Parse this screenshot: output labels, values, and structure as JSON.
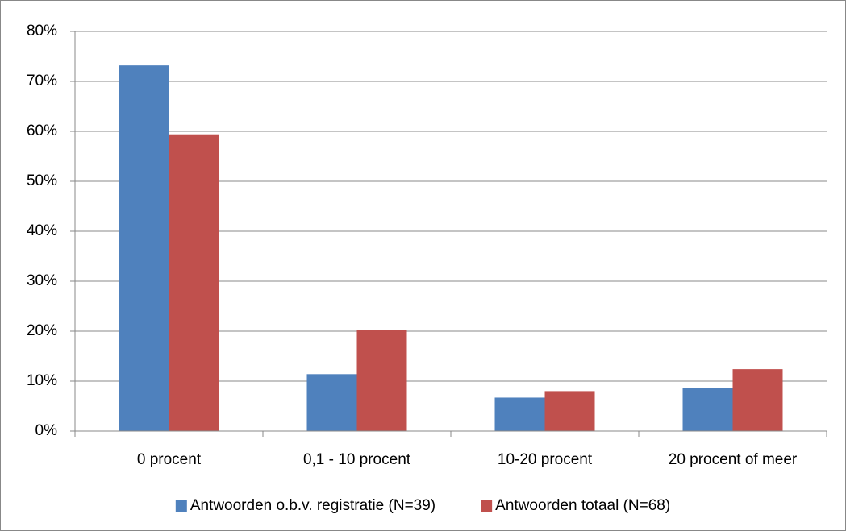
{
  "chart_data": {
    "type": "bar",
    "categories": [
      "0 procent",
      "0,1 - 10 procent",
      "10-20 procent",
      "20 procent of meer"
    ],
    "series": [
      {
        "name": "Antwoorden o.b.v. registratie (N=39)",
        "color": "#4f81bd",
        "values": [
          73.2,
          11.4,
          6.7,
          8.7
        ]
      },
      {
        "name": "Antwoorden totaal (N=68)",
        "color": "#c0504d",
        "values": [
          59.4,
          20.2,
          8.0,
          12.4
        ]
      }
    ],
    "ylim": [
      0,
      80
    ],
    "yticks": [
      {
        "value": 0,
        "label": "0%"
      },
      {
        "value": 10,
        "label": "10%"
      },
      {
        "value": 20,
        "label": "20%"
      },
      {
        "value": 30,
        "label": "30%"
      },
      {
        "value": 40,
        "label": "40%"
      },
      {
        "value": 50,
        "label": "50%"
      },
      {
        "value": 60,
        "label": "60%"
      },
      {
        "value": 70,
        "label": "70%"
      },
      {
        "value": 80,
        "label": "80%"
      }
    ],
    "grid": true,
    "legend": "bottom"
  }
}
